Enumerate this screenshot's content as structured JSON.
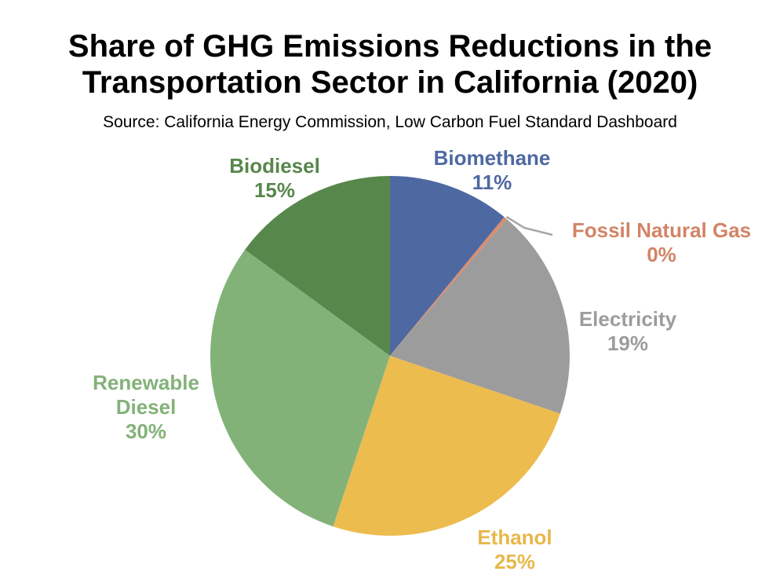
{
  "chart_data": {
    "type": "pie",
    "title_lines": [
      "Share of GHG Emissions Reductions in the",
      "Transportation Sector in California (2020)"
    ],
    "subtitle": "Source: California Energy Commission, Low Carbon Fuel Standard Dashboard",
    "slices": [
      {
        "name": "Biomethane",
        "value": 11,
        "label": "11%",
        "color": "#4e69a2"
      },
      {
        "name": "Fossil Natural Gas",
        "value": 0.3,
        "label": "0%",
        "color": "#dd8b6c"
      },
      {
        "name": "Electricity",
        "value": 19,
        "label": "19%",
        "color": "#9c9c9c"
      },
      {
        "name": "Ethanol",
        "value": 25,
        "label": "25%",
        "color": "#ecbc4e"
      },
      {
        "name": "Renewable Diesel",
        "value": 30,
        "label": "30%",
        "color": "#83b279"
      },
      {
        "name": "Biodiesel",
        "value": 15,
        "label": "15%",
        "color": "#57874b"
      }
    ],
    "label_text_colors": {
      "Biomethane": "#4e69a2",
      "Fossil Natural Gas": "#d28466",
      "Electricity": "#9c9c9c",
      "Ethanol": "#e8b74a",
      "Renewable Diesel": "#83b279",
      "Biodiesel": "#57874b"
    },
    "leader_line_color": "#a6a6a6"
  }
}
